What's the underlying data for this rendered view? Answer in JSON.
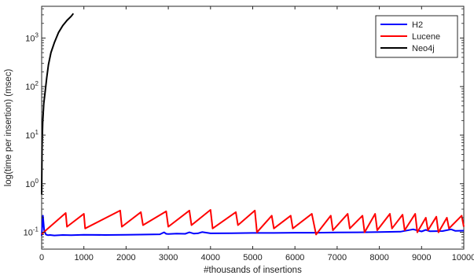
{
  "chart_data": {
    "type": "line",
    "xlabel": "#thousands of insertions",
    "ylabel": "log(time per insertion) (msec)",
    "xlim": [
      0,
      10000
    ],
    "ylim": [
      0.045,
      4500
    ],
    "yscale": "log",
    "grid": false,
    "legend_position": "top-right",
    "x_ticks": [
      0,
      1000,
      2000,
      3000,
      4000,
      5000,
      6000,
      7000,
      8000,
      9000,
      10000
    ],
    "x_tick_labels": [
      "0",
      "1000",
      "2000",
      "3000",
      "4000",
      "5000",
      "6000",
      "7000",
      "8000",
      "9000",
      "10000"
    ],
    "y_ticks": [
      0.1,
      1,
      10,
      100,
      1000
    ],
    "y_tick_labels": [
      {
        "base": "10",
        "exp": "-1"
      },
      {
        "base": "10",
        "exp": "0"
      },
      {
        "base": "10",
        "exp": "1"
      },
      {
        "base": "10",
        "exp": "2"
      },
      {
        "base": "10",
        "exp": "3"
      }
    ],
    "series": [
      {
        "name": "H2",
        "color": "#0000ff",
        "x": [
          0,
          30,
          60,
          100,
          150,
          200,
          300,
          500,
          700,
          1000,
          1500,
          2000,
          2500,
          2800,
          2900,
          2950,
          3000,
          3200,
          3400,
          3500,
          3600,
          3700,
          3800,
          4000,
          4500,
          5000,
          5500,
          6000,
          6500,
          7000,
          7500,
          8000,
          8500,
          8800,
          9000,
          9100,
          9200,
          9500,
          9700,
          9800,
          10000
        ],
        "y": [
          0.085,
          0.22,
          0.11,
          0.09,
          0.087,
          0.088,
          0.086,
          0.088,
          0.087,
          0.089,
          0.088,
          0.089,
          0.09,
          0.091,
          0.1,
          0.093,
          0.092,
          0.094,
          0.093,
          0.1,
          0.094,
          0.095,
          0.101,
          0.095,
          0.096,
          0.097,
          0.097,
          0.098,
          0.098,
          0.099,
          0.1,
          0.101,
          0.103,
          0.115,
          0.104,
          0.112,
          0.105,
          0.106,
          0.115,
          0.107,
          0.108
        ]
      },
      {
        "name": "Lucene",
        "color": "#ff0000",
        "x": [
          0,
          50,
          100,
          570,
          600,
          1000,
          1030,
          1860,
          1900,
          2350,
          2400,
          2950,
          3000,
          3500,
          3550,
          4000,
          4050,
          4600,
          4650,
          5050,
          5100,
          5450,
          5500,
          5900,
          5950,
          6400,
          6500,
          6850,
          6900,
          7250,
          7300,
          7600,
          7650,
          7900,
          7950,
          8250,
          8300,
          8550,
          8600,
          8850,
          8900,
          9100,
          9150,
          9350,
          9400,
          9600,
          9650,
          9950,
          10000
        ],
        "y": [
          0.09,
          0.1,
          0.11,
          0.25,
          0.13,
          0.24,
          0.12,
          0.28,
          0.13,
          0.26,
          0.14,
          0.27,
          0.13,
          0.28,
          0.14,
          0.29,
          0.12,
          0.26,
          0.14,
          0.28,
          0.1,
          0.22,
          0.12,
          0.22,
          0.12,
          0.24,
          0.09,
          0.22,
          0.11,
          0.24,
          0.12,
          0.22,
          0.1,
          0.24,
          0.11,
          0.24,
          0.12,
          0.23,
          0.11,
          0.24,
          0.1,
          0.2,
          0.11,
          0.21,
          0.1,
          0.2,
          0.12,
          0.22,
          0.13
        ]
      },
      {
        "name": "Neo4j",
        "color": "#000000",
        "x": [
          0,
          10,
          25,
          50,
          80,
          120,
          160,
          220,
          300,
          400,
          500,
          600,
          700,
          750
        ],
        "y": [
          0.6,
          6,
          18,
          45,
          75,
          150,
          280,
          500,
          800,
          1300,
          1800,
          2300,
          2800,
          3200
        ]
      }
    ]
  }
}
